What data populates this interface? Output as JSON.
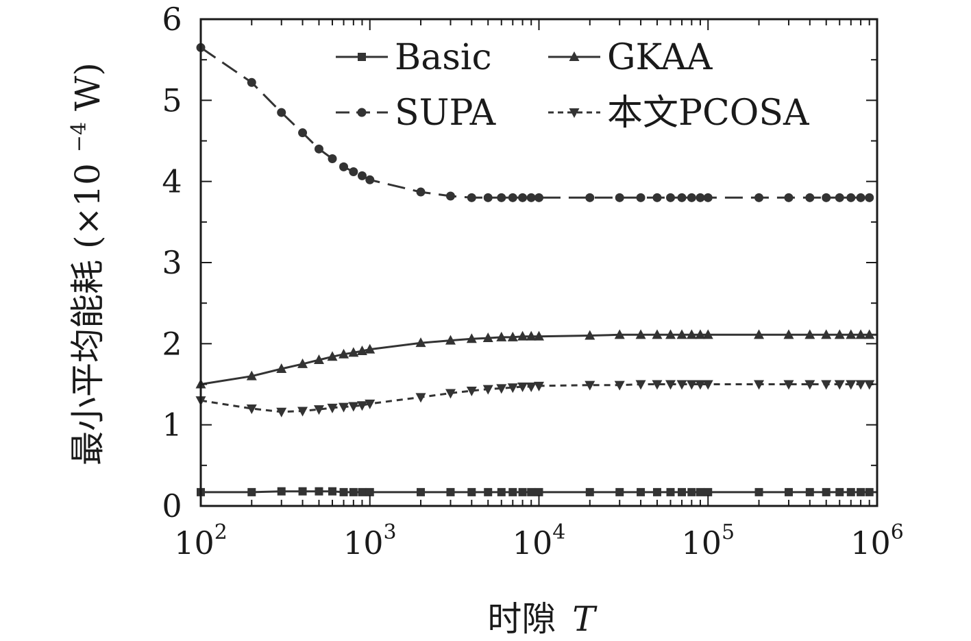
{
  "chart_data": {
    "type": "line",
    "title": "",
    "xlabel": "时隙",
    "xlabel_var": "T",
    "ylabel": "最小平均能耗 (×10",
    "ylabel_exp": "−4",
    "ylabel_unit": " W)",
    "x_scale": "log",
    "xlim": [
      100,
      1000000
    ],
    "ylim": [
      0,
      6
    ],
    "x_ticks": [
      {
        "base": "10",
        "exp": "2",
        "value": 100
      },
      {
        "base": "10",
        "exp": "3",
        "value": 1000
      },
      {
        "base": "10",
        "exp": "4",
        "value": 10000
      },
      {
        "base": "10",
        "exp": "5",
        "value": 100000
      },
      {
        "base": "10",
        "exp": "6",
        "value": 1000000
      }
    ],
    "y_ticks": [
      "0",
      "1",
      "2",
      "3",
      "4",
      "5",
      "6"
    ],
    "grid": false,
    "legend_position": "top",
    "color": "#333333",
    "x": [
      100,
      200,
      300,
      400,
      500,
      600,
      700,
      800,
      900,
      1000,
      2000,
      3000,
      4000,
      5000,
      6000,
      7000,
      8000,
      9000,
      10000,
      20000,
      30000,
      40000,
      50000,
      60000,
      70000,
      80000,
      90000,
      100000,
      200000,
      300000,
      400000,
      500000,
      600000,
      700000,
      800000,
      900000,
      1000000
    ],
    "series": [
      {
        "name": "Basic",
        "marker": "square",
        "dash": "solid",
        "values": [
          0.17,
          0.17,
          0.18,
          0.18,
          0.18,
          0.18,
          0.17,
          0.17,
          0.17,
          0.17,
          0.17,
          0.17,
          0.17,
          0.17,
          0.17,
          0.17,
          0.17,
          0.17,
          0.17,
          0.17,
          0.17,
          0.17,
          0.17,
          0.17,
          0.17,
          0.17,
          0.17,
          0.17,
          0.17,
          0.17,
          0.17,
          0.17,
          0.17,
          0.17,
          0.17,
          0.17,
          0.17
        ]
      },
      {
        "name": "GKAA",
        "marker": "triangle-up",
        "dash": "solid",
        "values": [
          1.5,
          1.6,
          1.69,
          1.75,
          1.8,
          1.84,
          1.87,
          1.89,
          1.91,
          1.93,
          2.01,
          2.04,
          2.06,
          2.07,
          2.08,
          2.08,
          2.09,
          2.09,
          2.09,
          2.1,
          2.11,
          2.11,
          2.11,
          2.11,
          2.11,
          2.11,
          2.11,
          2.11,
          2.11,
          2.11,
          2.11,
          2.11,
          2.11,
          2.11,
          2.11,
          2.11,
          2.11
        ]
      },
      {
        "name": "SUPA",
        "marker": "circle",
        "dash": "long-dash",
        "values": [
          5.65,
          5.22,
          4.85,
          4.6,
          4.4,
          4.28,
          4.18,
          4.12,
          4.07,
          4.02,
          3.87,
          3.82,
          3.8,
          3.8,
          3.8,
          3.8,
          3.8,
          3.8,
          3.8,
          3.8,
          3.8,
          3.8,
          3.8,
          3.8,
          3.8,
          3.8,
          3.8,
          3.8,
          3.8,
          3.8,
          3.8,
          3.8,
          3.8,
          3.8,
          3.8,
          3.8,
          3.8
        ]
      },
      {
        "name": "本文PCOSA",
        "marker": "triangle-down",
        "dash": "short-dash",
        "values": [
          1.3,
          1.2,
          1.16,
          1.17,
          1.19,
          1.21,
          1.22,
          1.23,
          1.24,
          1.26,
          1.34,
          1.39,
          1.42,
          1.44,
          1.45,
          1.46,
          1.47,
          1.47,
          1.48,
          1.49,
          1.49,
          1.5,
          1.5,
          1.5,
          1.5,
          1.5,
          1.5,
          1.5,
          1.5,
          1.5,
          1.5,
          1.5,
          1.5,
          1.5,
          1.5,
          1.5,
          1.5
        ]
      }
    ]
  }
}
